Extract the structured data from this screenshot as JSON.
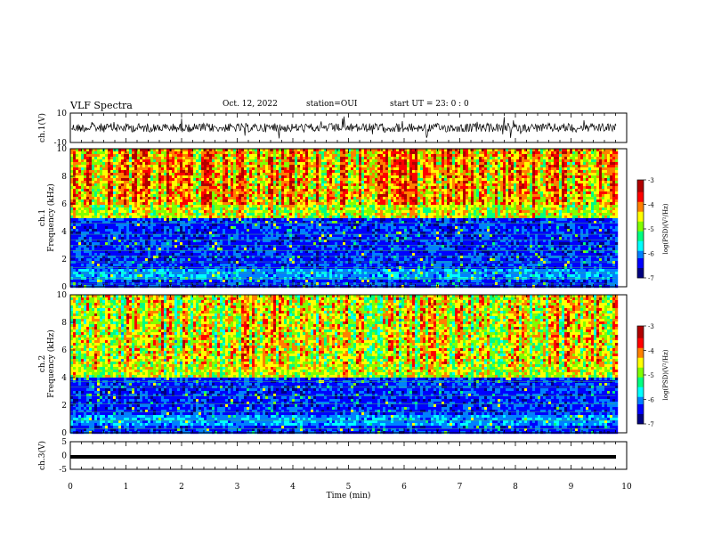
{
  "header": {
    "title": "VLF Spectra",
    "date": "Oct. 12, 2022",
    "station": "station=OUI",
    "start_ut": "start  UT =   23: 0  : 0"
  },
  "colors": {
    "background": "#ffffff",
    "axis": "#000000",
    "colormap": [
      "#000080",
      "#0000ff",
      "#0080ff",
      "#00ffff",
      "#00ff80",
      "#80ff00",
      "#ffff00",
      "#ff8000",
      "#ff0000",
      "#b00000"
    ]
  },
  "chart_data": [
    {
      "id": "ch1",
      "type": "line",
      "ylabel": "ch.1(V)",
      "ylim": [
        -10,
        10
      ],
      "yticks": [
        "10",
        "-10"
      ],
      "xlim": [
        0,
        10
      ]
    },
    {
      "id": "ch1_spec",
      "type": "heatmap",
      "ylabel": "ch.1\nFrequency  (kHz)",
      "ylim": [
        0,
        10
      ],
      "yticks": [
        "0",
        "2",
        "4",
        "6",
        "8",
        "10"
      ],
      "xlim": [
        0,
        9.8
      ],
      "colorbar": {
        "label": "log(PSD)(V²/Hz)",
        "range": [
          -7,
          -3
        ],
        "ticks": [
          "-3",
          "-4",
          "-5",
          "-6",
          "-7"
        ]
      },
      "description_levels": {
        "low_band_khz": [
          0,
          5
        ],
        "high_band_khz": [
          5,
          10
        ]
      }
    },
    {
      "id": "ch2_spec",
      "type": "heatmap",
      "ylabel": "ch.2\nFrequency  (kHz)",
      "ylim": [
        0,
        10
      ],
      "yticks": [
        "0",
        "2",
        "4",
        "6",
        "8",
        "10"
      ],
      "xlim": [
        0,
        9.8
      ],
      "colorbar": {
        "label": "log(PSD)(V²/Hz)",
        "range": [
          -7,
          -3
        ],
        "ticks": [
          "-3",
          "-4",
          "-5",
          "-6",
          "-7"
        ]
      }
    },
    {
      "id": "ch3",
      "type": "line",
      "ylabel": "ch.3(V)",
      "ylim": [
        -5,
        5
      ],
      "yticks": [
        "5",
        "0",
        "-5"
      ],
      "xlim": [
        0,
        10
      ],
      "value": -0.5
    }
  ],
  "xaxis": {
    "label": "Time  (min)",
    "ticks": [
      "0",
      "1",
      "2",
      "3",
      "4",
      "5",
      "6",
      "7",
      "8",
      "9",
      "10"
    ]
  }
}
